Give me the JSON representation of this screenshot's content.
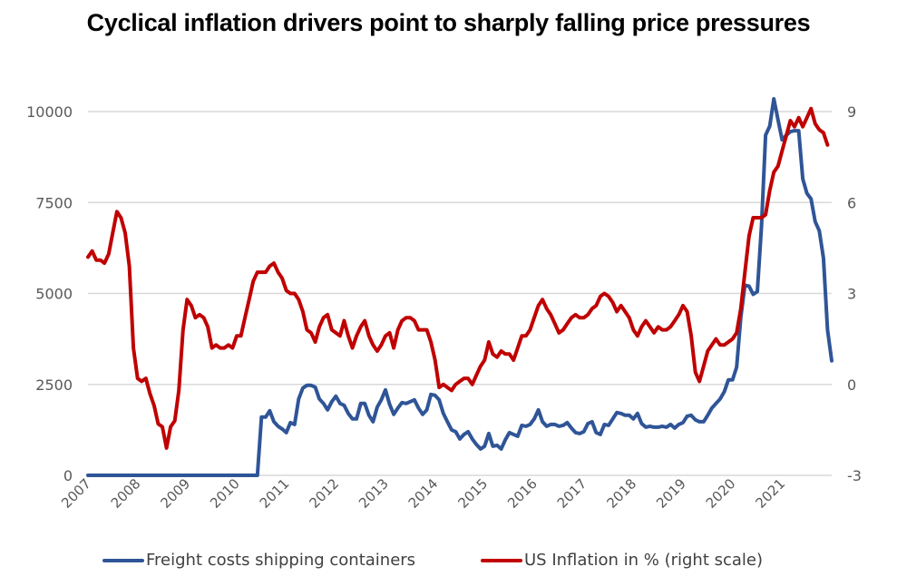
{
  "chart_data": {
    "type": "line",
    "title": "Cyclical inflation drivers point to sharply falling price pressures",
    "xlabel": "",
    "ylabel": "",
    "x_start": "2007-01",
    "x_frequency": "monthly",
    "x_tick_labels": [
      "2007",
      "2008",
      "2009",
      "2010",
      "2011",
      "2012",
      "2013",
      "2014",
      "2015",
      "2016",
      "2017",
      "2018",
      "2019",
      "2020",
      "2021"
    ],
    "x_range": [
      "2007-01",
      "2022-01"
    ],
    "y_left": {
      "ticks": [
        0,
        2500,
        5000,
        7500,
        10000
      ],
      "tick_labels": [
        "0",
        "2500",
        "5000",
        "7500",
        "10000"
      ],
      "range": [
        0,
        10000
      ]
    },
    "y_right": {
      "ticks": [
        -3,
        0,
        3,
        6,
        9
      ],
      "tick_labels": [
        "-3",
        "0",
        "3",
        "6",
        "9"
      ],
      "range": [
        -3,
        9
      ]
    },
    "grid": true,
    "legend_position": "bottom",
    "series": [
      {
        "name": "Freight costs shipping containers",
        "axis": "left",
        "color": "#2F5597",
        "values": [
          0,
          0,
          0,
          0,
          0,
          0,
          0,
          0,
          0,
          0,
          0,
          0,
          0,
          0,
          0,
          0,
          0,
          0,
          0,
          0,
          0,
          0,
          0,
          0,
          0,
          0,
          0,
          0,
          0,
          0,
          0,
          0,
          0,
          0,
          0,
          0,
          0,
          0,
          0,
          0,
          0,
          0,
          1600,
          1600,
          1775,
          1475,
          1350,
          1275,
          1175,
          1450,
          1400,
          2100,
          2400,
          2475,
          2475,
          2425,
          2100,
          1975,
          1800,
          2025,
          2175,
          1975,
          1925,
          1700,
          1550,
          1550,
          1975,
          1975,
          1650,
          1475,
          1875,
          2075,
          2350,
          1950,
          1675,
          1850,
          2000,
          1975,
          2025,
          2075,
          1850,
          1675,
          1800,
          2225,
          2200,
          2075,
          1700,
          1475,
          1250,
          1200,
          1000,
          1125,
          1200,
          1000,
          850,
          725,
          800,
          1150,
          800,
          825,
          725,
          975,
          1175,
          1125,
          1075,
          1375,
          1350,
          1400,
          1550,
          1800,
          1475,
          1350,
          1400,
          1400,
          1350,
          1375,
          1450,
          1300,
          1175,
          1150,
          1200,
          1425,
          1475,
          1175,
          1125,
          1400,
          1375,
          1550,
          1725,
          1700,
          1650,
          1650,
          1550,
          1700,
          1425,
          1325,
          1350,
          1325,
          1325,
          1350,
          1325,
          1400,
          1300,
          1400,
          1450,
          1625,
          1650,
          1525,
          1475,
          1475,
          1650,
          1850,
          1975,
          2100,
          2300,
          2625,
          2625,
          2975,
          4350,
          5225,
          5200,
          4975,
          5050,
          6850,
          9350,
          9600,
          10350,
          9775,
          9225,
          9350,
          9450,
          9475,
          9475,
          8150,
          7750,
          7600,
          6975,
          6725,
          5975,
          4000,
          3150
        ]
      },
      {
        "name": "US Inflation in % (right scale)",
        "axis": "right",
        "color": "#C00000",
        "values": [
          4.2,
          4.4,
          4.1,
          4.1,
          4.0,
          4.3,
          5.0,
          5.7,
          5.5,
          5.0,
          3.9,
          1.2,
          0.2,
          0.1,
          0.2,
          -0.3,
          -0.7,
          -1.3,
          -1.4,
          -2.1,
          -1.4,
          -1.2,
          -0.2,
          1.8,
          2.8,
          2.6,
          2.2,
          2.3,
          2.2,
          1.9,
          1.2,
          1.3,
          1.2,
          1.2,
          1.3,
          1.2,
          1.6,
          1.6,
          2.2,
          2.8,
          3.4,
          3.7,
          3.7,
          3.7,
          3.9,
          4.0,
          3.7,
          3.5,
          3.1,
          3.0,
          3.0,
          2.8,
          2.4,
          1.8,
          1.7,
          1.4,
          1.9,
          2.2,
          2.3,
          1.8,
          1.7,
          1.6,
          2.1,
          1.6,
          1.2,
          1.6,
          1.9,
          2.1,
          1.6,
          1.3,
          1.1,
          1.3,
          1.6,
          1.7,
          1.2,
          1.8,
          2.1,
          2.2,
          2.2,
          2.1,
          1.8,
          1.8,
          1.8,
          1.4,
          0.8,
          -0.1,
          0.0,
          -0.1,
          -0.2,
          0.0,
          0.1,
          0.2,
          0.2,
          0.0,
          0.3,
          0.6,
          0.8,
          1.4,
          1.0,
          0.9,
          1.1,
          1.0,
          1.0,
          0.8,
          1.2,
          1.6,
          1.6,
          1.8,
          2.2,
          2.6,
          2.8,
          2.5,
          2.3,
          2.0,
          1.7,
          1.8,
          2.0,
          2.2,
          2.3,
          2.2,
          2.2,
          2.3,
          2.5,
          2.6,
          2.9,
          3.0,
          2.9,
          2.7,
          2.4,
          2.6,
          2.4,
          2.2,
          1.8,
          1.6,
          1.9,
          2.1,
          1.9,
          1.7,
          1.9,
          1.8,
          1.8,
          1.9,
          2.1,
          2.3,
          2.6,
          2.4,
          1.6,
          0.4,
          0.1,
          0.6,
          1.1,
          1.3,
          1.5,
          1.3,
          1.3,
          1.4,
          1.5,
          1.7,
          2.5,
          3.7,
          4.9,
          5.5,
          5.5,
          5.5,
          5.6,
          6.4,
          7.0,
          7.2,
          7.7,
          8.2,
          8.7,
          8.5,
          8.8,
          8.5,
          8.8,
          9.1,
          8.6,
          8.4,
          8.3,
          7.9
        ]
      }
    ]
  },
  "legend": {
    "items": [
      {
        "label": "Freight costs shipping containers",
        "color": "#2F5597"
      },
      {
        "label": "US Inflation in % (right scale)",
        "color": "#C00000"
      }
    ]
  }
}
